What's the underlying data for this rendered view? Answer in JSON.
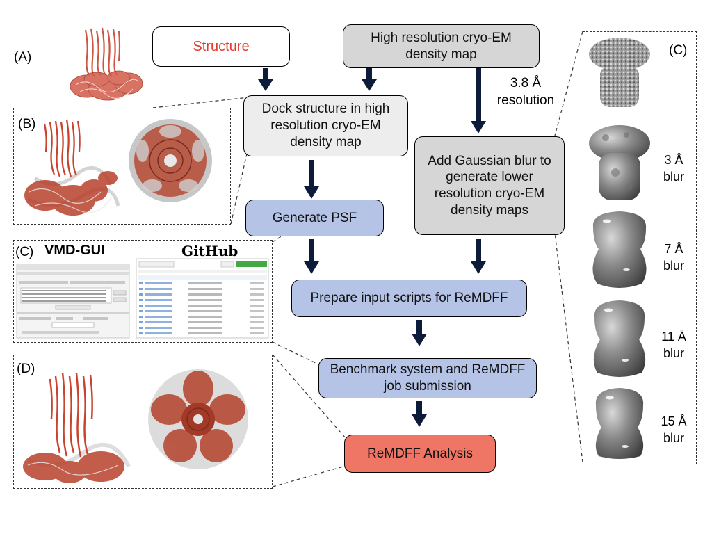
{
  "panels": {
    "A": "(A)",
    "B": "(B)",
    "C_left": "(C)",
    "C_right": "(C)",
    "D": "(D)"
  },
  "flow": {
    "structure": "Structure",
    "cryoem_map": "High resolution cryo-EM density map",
    "dock": "Dock structure in high resolution cryo-EM density map",
    "generate_psf": "Generate PSF",
    "gaussian_blur": "Add Gaussian blur to generate lower resolution cryo-EM density maps",
    "prepare_scripts": "Prepare input scripts for ReMDFF",
    "benchmark": "Benchmark system and ReMDFF job submission",
    "analysis": "ReMDFF Analysis",
    "resolution_note": "3.8 Å resolution"
  },
  "blur_maps": [
    {
      "label": "3 Å blur"
    },
    {
      "label": "7 Å blur"
    },
    {
      "label": "11 Å blur"
    },
    {
      "label": "15 Å blur"
    }
  ],
  "screenshots": {
    "vmd_title": "VMD-GUI",
    "github_title": "GitHub"
  },
  "colors": {
    "structure_text": "#e23b2e",
    "protein_red": "#c8442f",
    "box_blue": "#b5c3e6",
    "box_red": "#ef7565",
    "box_gray": "#d6d6d6",
    "arrow": "#0d1b3a"
  }
}
